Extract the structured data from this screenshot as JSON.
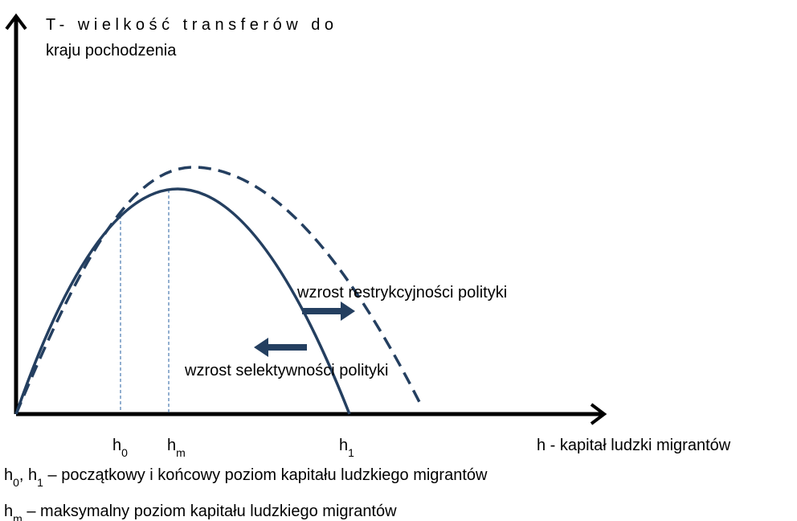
{
  "diagram": {
    "y_axis_label": [
      "T- wielkość transferów do",
      "kraju pochodzenia"
    ],
    "x_axis_label": "h - kapitał ludzki migrantów",
    "annotations": [
      "wzrost restrykcyjności polityki",
      "wzrost selektywności polityki"
    ],
    "ticks": [
      [
        {
          "text": "h"
        },
        {
          "sub": "0"
        }
      ],
      [
        {
          "text": "h"
        },
        {
          "sub": "m"
        }
      ],
      [
        {
          "text": "h"
        },
        {
          "sub": "1"
        }
      ]
    ],
    "captions": [
      [
        {
          "text": "h"
        },
        {
          "sub": "0"
        },
        {
          "text": ", h"
        },
        {
          "sub": "1"
        },
        {
          "text": " – początkowy i końcowy poziom kapitału ludzkiego migrantów"
        }
      ],
      [
        {
          "text": "h"
        },
        {
          "sub": "m"
        },
        {
          "text": " – maksymalny poziom kapitału ludzkiego migrantów"
        }
      ]
    ]
  }
}
